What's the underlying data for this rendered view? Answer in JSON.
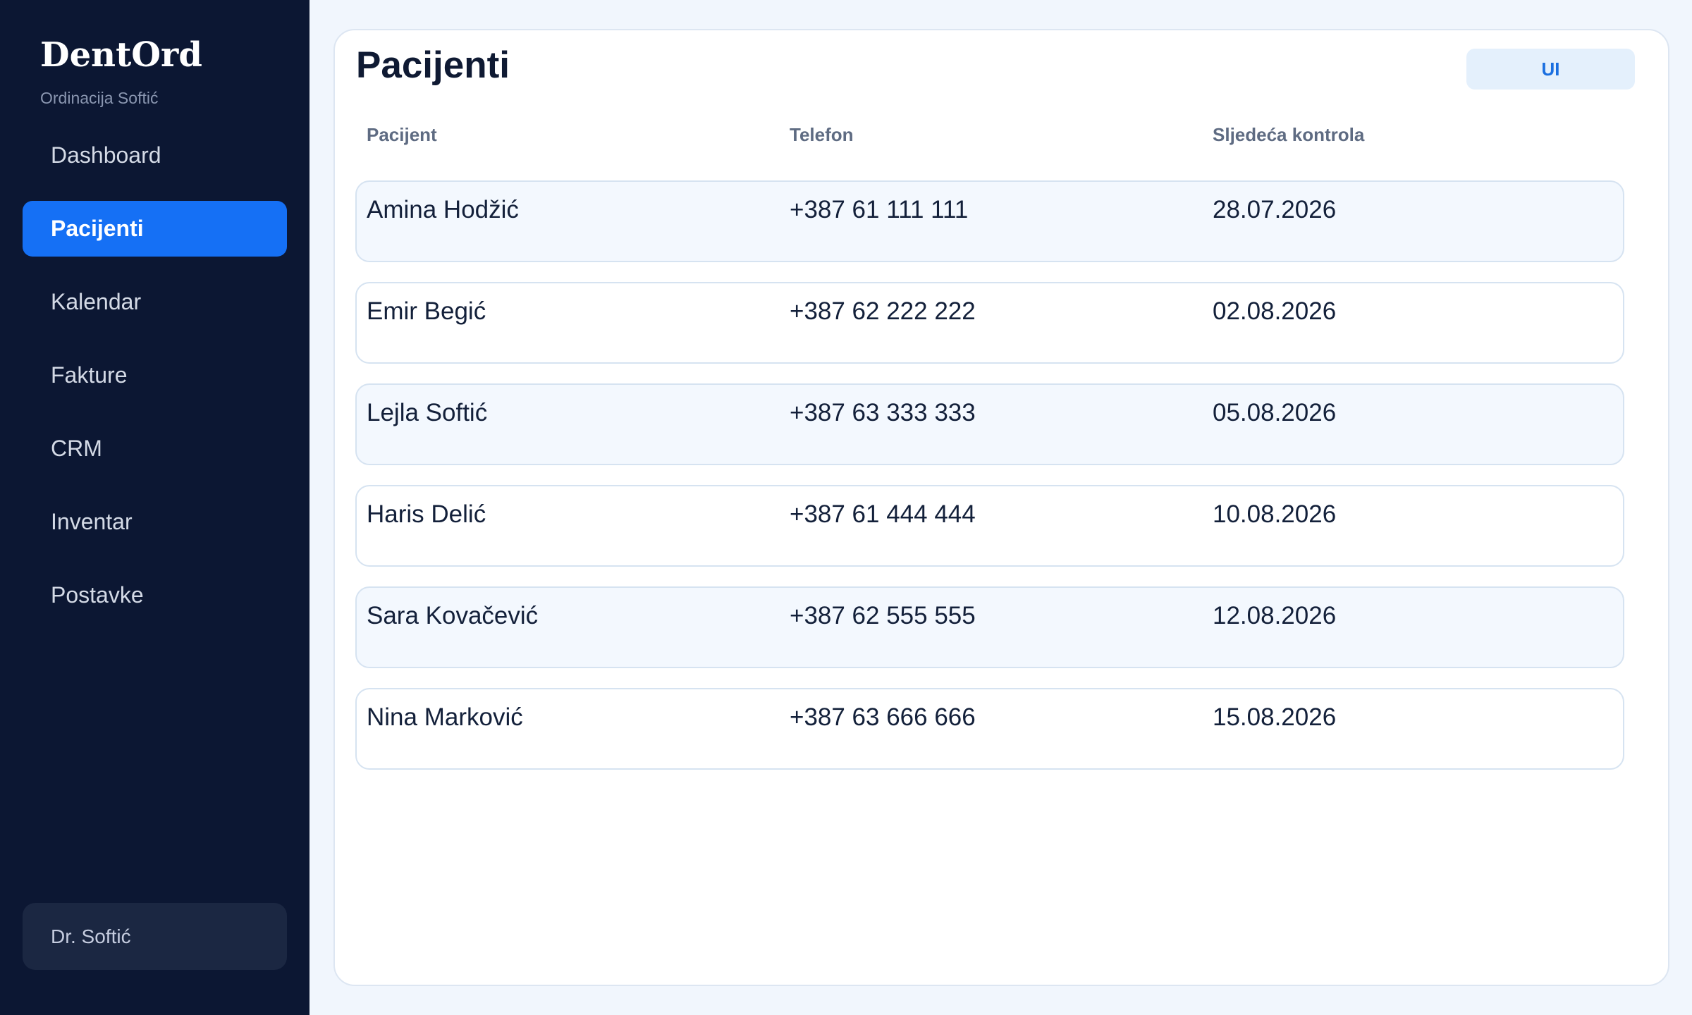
{
  "sidebar": {
    "brand": "DentOrd",
    "subtitle": "Ordinacija Softić",
    "nav": [
      "Dashboard",
      "Pacijenti",
      "Kalendar",
      "Fakture",
      "CRM",
      "Inventar",
      "Postavke"
    ],
    "active": 1,
    "user": "Dr. Softić"
  },
  "main": {
    "title": "Pacijenti",
    "button": "UI"
  },
  "table": {
    "headers": [
      "Pacijent",
      "Telefon",
      "Sljedeća kontrola"
    ],
    "rows": [
      [
        "Amina Hodžić",
        "+387 61 111 111",
        "28.07.2026"
      ],
      [
        "Emir Begić",
        "+387 62 222 222",
        "02.08.2026"
      ],
      [
        "Lejla Softić",
        "+387 63 333 333",
        "05.08.2026"
      ],
      [
        "Haris Delić",
        "+387 61 444 444",
        "10.08.2026"
      ],
      [
        "Sara Kovačević",
        "+387 62 555 555",
        "12.08.2026"
      ],
      [
        "Nina Marković",
        "+387 63 666 666",
        "15.08.2026"
      ]
    ]
  }
}
